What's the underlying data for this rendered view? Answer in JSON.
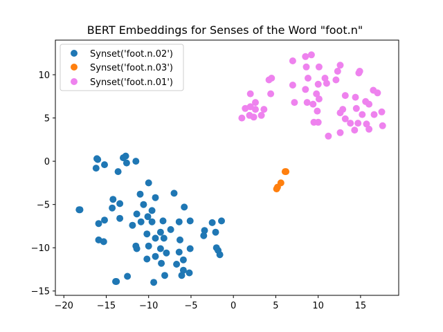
{
  "chart_data": {
    "type": "scatter",
    "title": "BERT Embeddings for Senses of the Word \"foot.n\"",
    "xlabel": "",
    "ylabel": "",
    "xlim": [
      -21,
      19.5
    ],
    "ylim": [
      -15.5,
      14
    ],
    "xticks": [
      -20,
      -15,
      -10,
      -5,
      0,
      5,
      10,
      15
    ],
    "yticks": [
      -15,
      -10,
      -5,
      0,
      5,
      10
    ],
    "xtick_labels": [
      "−20",
      "−15",
      "−10",
      "−5",
      "0",
      "5",
      "10",
      "15"
    ],
    "ytick_labels": [
      "−15",
      "−10",
      "−5",
      "0",
      "5",
      "10"
    ],
    "grid": false,
    "legend_position": "top-left",
    "series": [
      {
        "name": "Synset('foot.n.02')",
        "color": "#1f77b4",
        "points": [
          [
            -16.1,
            0.3
          ],
          [
            -16.0,
            0.2
          ],
          [
            -16.2,
            -0.8
          ],
          [
            -15.2,
            -0.4
          ],
          [
            -13.0,
            0.4
          ],
          [
            -12.7,
            0.6
          ],
          [
            -12.6,
            -0.2
          ],
          [
            -11.5,
            0.0
          ],
          [
            -13.6,
            -1.2
          ],
          [
            -10.0,
            -2.5
          ],
          [
            -7.0,
            -3.7
          ],
          [
            -11.0,
            -3.8
          ],
          [
            -9.2,
            -4.2
          ],
          [
            -14.2,
            -4.4
          ],
          [
            -13.4,
            -4.9
          ],
          [
            -10.6,
            -5.0
          ],
          [
            -14.3,
            -5.4
          ],
          [
            -5.8,
            -5.3
          ],
          [
            -18.1,
            -5.6
          ],
          [
            -18.2,
            -5.6
          ],
          [
            -9.6,
            -5.7
          ],
          [
            -11.4,
            -6.1
          ],
          [
            -10.1,
            -6.4
          ],
          [
            -13.4,
            -6.6
          ],
          [
            -15.2,
            -6.8
          ],
          [
            -15.9,
            -7.2
          ],
          [
            -10.9,
            -7.0
          ],
          [
            -9.6,
            -7.0
          ],
          [
            -8.3,
            -6.9
          ],
          [
            -6.4,
            -7.0
          ],
          [
            -5.1,
            -6.9
          ],
          [
            -2.5,
            -7.1
          ],
          [
            -1.4,
            -6.9
          ],
          [
            -11.9,
            -7.4
          ],
          [
            -7.4,
            -7.9
          ],
          [
            -8.6,
            -8.2
          ],
          [
            -10.2,
            -8.4
          ],
          [
            -3.4,
            -8.0
          ],
          [
            -2.1,
            -8.2
          ],
          [
            -3.5,
            -8.6
          ],
          [
            -9.2,
            -8.9
          ],
          [
            -8.2,
            -8.9
          ],
          [
            -6.3,
            -9.1
          ],
          [
            -15.9,
            -9.1
          ],
          [
            -15.3,
            -9.3
          ],
          [
            -11.5,
            -9.8
          ],
          [
            -11.4,
            -10.1
          ],
          [
            -10.0,
            -9.8
          ],
          [
            -8.6,
            -10.1
          ],
          [
            -7.9,
            -10.6
          ],
          [
            -6.4,
            -10.5
          ],
          [
            -5.1,
            -10.1
          ],
          [
            -2.0,
            -10.0
          ],
          [
            -1.8,
            -10.3
          ],
          [
            -1.6,
            -10.8
          ],
          [
            -9.2,
            -11.0
          ],
          [
            -10.2,
            -11.3
          ],
          [
            -5.9,
            -11.4
          ],
          [
            -8.5,
            -11.8
          ],
          [
            -6.7,
            -11.9
          ],
          [
            -5.9,
            -12.6
          ],
          [
            -5.2,
            -12.9
          ],
          [
            -6.1,
            -13.2
          ],
          [
            -8.1,
            -13.2
          ],
          [
            -12.5,
            -13.3
          ],
          [
            -13.9,
            -13.9
          ],
          [
            -13.8,
            -13.9
          ],
          [
            -9.4,
            -14.0
          ]
        ]
      },
      {
        "name": "Synset('foot.n.03')",
        "color": "#ff7f0e",
        "points": [
          [
            6.2,
            -1.2
          ],
          [
            6.1,
            -1.2
          ],
          [
            5.6,
            -2.5
          ],
          [
            5.2,
            -3.0
          ],
          [
            5.1,
            -3.2
          ]
        ]
      },
      {
        "name": "Synset('foot.n.01')",
        "color": "#ee82ee",
        "points": [
          [
            7.0,
            11.6
          ],
          [
            9.2,
            12.3
          ],
          [
            8.5,
            12.1
          ],
          [
            12.6,
            11.1
          ],
          [
            10.1,
            10.9
          ],
          [
            8.6,
            10.9
          ],
          [
            12.3,
            10.4
          ],
          [
            14.9,
            10.4
          ],
          [
            14.8,
            10.2
          ],
          [
            10.8,
            9.6
          ],
          [
            8.8,
            9.6
          ],
          [
            4.5,
            9.6
          ],
          [
            4.2,
            9.4
          ],
          [
            12.1,
            9.4
          ],
          [
            11.0,
            9.0
          ],
          [
            10.0,
            8.9
          ],
          [
            7.0,
            8.8
          ],
          [
            16.5,
            8.2
          ],
          [
            17.0,
            7.9
          ],
          [
            8.5,
            8.3
          ],
          [
            9.8,
            7.8
          ],
          [
            2.0,
            7.8
          ],
          [
            4.4,
            7.8
          ],
          [
            13.2,
            7.6
          ],
          [
            14.4,
            7.4
          ],
          [
            10.1,
            7.2
          ],
          [
            15.6,
            6.9
          ],
          [
            16.0,
            6.6
          ],
          [
            2.6,
            6.8
          ],
          [
            7.2,
            6.8
          ],
          [
            8.7,
            6.8
          ],
          [
            9.4,
            6.6
          ],
          [
            12.9,
            6.0
          ],
          [
            1.4,
            6.1
          ],
          [
            2.0,
            6.3
          ],
          [
            2.6,
            6.0
          ],
          [
            3.6,
            6.0
          ],
          [
            14.5,
            6.1
          ],
          [
            9.9,
            5.8
          ],
          [
            12.6,
            5.6
          ],
          [
            15.2,
            5.4
          ],
          [
            16.6,
            5.4
          ],
          [
            17.5,
            5.7
          ],
          [
            1.9,
            5.3
          ],
          [
            2.4,
            5.1
          ],
          [
            3.3,
            5.3
          ],
          [
            1.0,
            5.0
          ],
          [
            13.2,
            4.9
          ],
          [
            13.8,
            4.4
          ],
          [
            9.5,
            4.5
          ],
          [
            10.0,
            4.5
          ],
          [
            14.7,
            4.4
          ],
          [
            15.7,
            4.3
          ],
          [
            17.6,
            4.1
          ],
          [
            16.0,
            3.7
          ],
          [
            14.3,
            3.6
          ],
          [
            12.6,
            3.3
          ],
          [
            11.2,
            2.9
          ]
        ]
      }
    ]
  }
}
